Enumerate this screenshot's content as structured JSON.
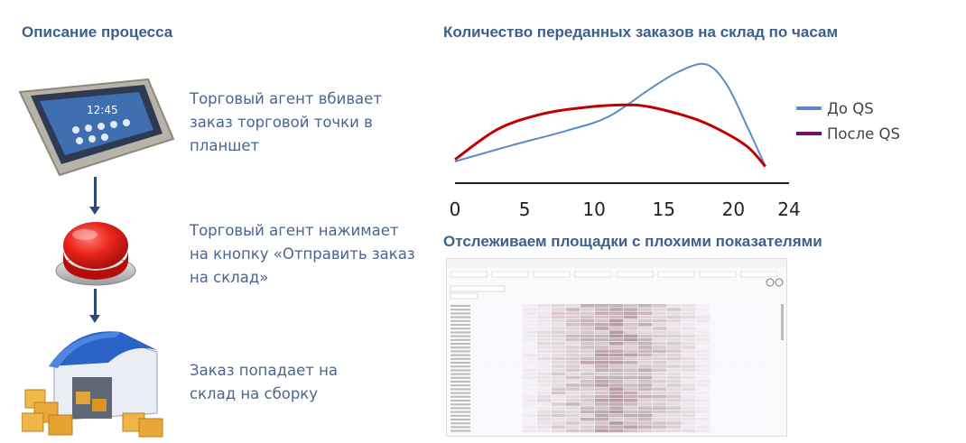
{
  "process": {
    "title": "Описание процесса",
    "steps": [
      {
        "icon": "tablet-icon",
        "text": "Торговый агент вбивает\nзаказ торговой точки в\nпланшет"
      },
      {
        "icon": "red-button-icon",
        "text": "Торговый агент нажимает\nна кнопку «Отправить заказ\nна склад»"
      },
      {
        "icon": "warehouse-icon",
        "text": "Заказ попадает на\nсклад на сборку"
      }
    ]
  },
  "chart_data": {
    "type": "line",
    "title": "Количество переданных заказов на склад по часам",
    "x_ticks": [
      0,
      5,
      10,
      15,
      20,
      24
    ],
    "xlim": [
      0,
      24
    ],
    "legend_position": "right",
    "series": [
      {
        "name": "До QS",
        "color": "#5b8bc4",
        "x": [
          0,
          4,
          8,
          11,
          14,
          16,
          18,
          19.5,
          21,
          22.3
        ],
        "y": [
          0.1,
          0.26,
          0.41,
          0.55,
          0.83,
          1.0,
          1.08,
          0.88,
          0.45,
          0.05
        ]
      },
      {
        "name": "После QS",
        "color": "#c00000",
        "x": [
          0,
          3,
          6,
          9,
          12,
          14,
          17,
          19,
          21,
          22.3
        ],
        "y": [
          0.12,
          0.42,
          0.57,
          0.64,
          0.67,
          0.65,
          0.54,
          0.42,
          0.25,
          0.05
        ]
      }
    ]
  },
  "heatmap": {
    "title": "Отслеживаем площадки с плохими показателями"
  },
  "colors": {
    "heading": "#3d5f8c",
    "arrow": "#2b4a7a",
    "heat_dark": "#b03a4a"
  }
}
